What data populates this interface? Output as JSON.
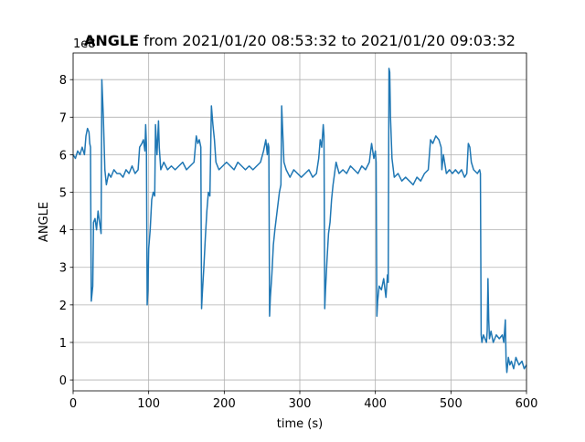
{
  "chart_data": {
    "type": "line",
    "title_bold": "ANGLE",
    "title": "from 2021/01/20 08:53:32 to 2021/01/20 09:03:32",
    "y_offset_label": "1e8",
    "x_label": "time (s)",
    "y_label": "ANGLE",
    "xlim": [
      0,
      600
    ],
    "xticks": [
      0,
      100,
      200,
      300,
      400,
      500,
      600
    ],
    "ylim": [
      -0.29,
      8.71
    ],
    "yticks": [
      0,
      1,
      2,
      3,
      4,
      5,
      6,
      7,
      8
    ],
    "grid": true,
    "series": [
      {
        "name": "ANGLE",
        "color": "#1f77b4",
        "x": [
          0,
          3,
          6,
          9,
          12,
          15,
          17,
          19,
          21,
          22,
          23,
          24,
          25,
          26,
          27,
          29,
          31,
          33,
          35,
          37,
          38,
          39,
          40,
          42,
          44,
          47,
          50,
          54,
          58,
          62,
          66,
          70,
          74,
          78,
          82,
          86,
          88,
          91,
          93,
          95,
          96,
          97,
          98,
          99,
          100,
          102,
          104,
          106,
          108,
          109,
          111,
          113,
          114,
          116,
          120,
          125,
          130,
          135,
          140,
          145,
          150,
          155,
          160,
          163,
          165,
          167,
          169,
          170,
          171,
          173,
          175,
          177,
          179,
          181,
          183,
          185,
          187,
          189,
          193,
          198,
          203,
          208,
          213,
          218,
          223,
          228,
          233,
          238,
          243,
          248,
          252,
          255,
          257,
          258,
          259,
          260,
          261,
          263,
          265,
          267,
          270,
          273,
          275,
          276,
          277,
          279,
          282,
          287,
          292,
          297,
          302,
          307,
          312,
          317,
          322,
          325,
          327,
          329,
          331,
          332,
          333,
          334,
          336,
          338,
          340,
          342,
          344,
          346,
          348,
          352,
          357,
          362,
          367,
          372,
          377,
          382,
          387,
          392,
          395,
          398,
          400,
          401,
          402,
          403,
          405,
          408,
          411,
          414,
          416,
          417,
          418,
          419,
          420,
          422,
          425,
          430,
          435,
          440,
          445,
          450,
          455,
          460,
          465,
          470,
          473,
          476,
          480,
          484,
          487,
          488,
          490,
          494,
          498,
          502,
          506,
          510,
          514,
          518,
          521,
          523,
          525,
          527,
          530,
          535,
          538,
          539,
          540,
          541,
          543,
          545,
          547,
          548,
          549,
          550,
          551,
          553,
          556,
          560,
          564,
          568,
          570,
          572,
          573,
          574,
          576,
          578,
          580,
          583,
          586,
          590,
          594,
          597,
          600
        ],
        "values": [
          6.0,
          5.9,
          6.1,
          6.0,
          6.2,
          6.0,
          6.5,
          6.7,
          6.6,
          6.3,
          6.2,
          2.1,
          2.3,
          2.5,
          4.2,
          4.3,
          4.0,
          4.5,
          4.2,
          3.9,
          8.0,
          7.5,
          7.0,
          5.6,
          5.2,
          5.5,
          5.4,
          5.6,
          5.5,
          5.5,
          5.4,
          5.6,
          5.5,
          5.7,
          5.5,
          5.6,
          6.2,
          6.3,
          6.4,
          6.1,
          6.8,
          6.3,
          2.0,
          2.4,
          3.5,
          4.0,
          4.8,
          5.0,
          4.9,
          6.8,
          6.0,
          6.9,
          6.2,
          5.6,
          5.8,
          5.6,
          5.7,
          5.6,
          5.7,
          5.8,
          5.6,
          5.7,
          5.8,
          6.5,
          6.3,
          6.4,
          6.2,
          1.9,
          2.3,
          3.0,
          3.8,
          4.5,
          5.0,
          4.9,
          7.3,
          6.8,
          6.4,
          5.8,
          5.6,
          5.7,
          5.8,
          5.7,
          5.6,
          5.8,
          5.7,
          5.6,
          5.7,
          5.6,
          5.7,
          5.8,
          6.1,
          6.4,
          6.0,
          6.3,
          6.2,
          1.7,
          2.2,
          2.8,
          3.6,
          4.0,
          4.5,
          5.0,
          5.2,
          7.3,
          6.8,
          5.8,
          5.6,
          5.4,
          5.6,
          5.5,
          5.4,
          5.5,
          5.6,
          5.4,
          5.5,
          5.9,
          6.4,
          6.2,
          6.8,
          6.5,
          1.9,
          2.4,
          3.2,
          3.9,
          4.2,
          4.8,
          5.2,
          5.5,
          5.8,
          5.5,
          5.6,
          5.5,
          5.7,
          5.6,
          5.5,
          5.7,
          5.6,
          5.8,
          6.3,
          5.9,
          6.1,
          5.8,
          1.7,
          2.1,
          2.5,
          2.4,
          2.7,
          2.2,
          2.8,
          2.6,
          8.3,
          8.2,
          7.0,
          5.9,
          5.4,
          5.5,
          5.3,
          5.4,
          5.3,
          5.2,
          5.4,
          5.3,
          5.5,
          5.6,
          6.4,
          6.3,
          6.5,
          6.4,
          6.2,
          5.6,
          6.0,
          5.5,
          5.6,
          5.5,
          5.6,
          5.5,
          5.6,
          5.4,
          5.5,
          6.3,
          6.2,
          5.8,
          5.6,
          5.5,
          5.6,
          5.5,
          1.2,
          1.0,
          1.2,
          1.1,
          1.0,
          1.3,
          2.7,
          1.6,
          1.1,
          1.3,
          1.0,
          1.2,
          1.1,
          1.2,
          1.0,
          1.6,
          0.5,
          0.2,
          0.6,
          0.4,
          0.5,
          0.3,
          0.6,
          0.4,
          0.5,
          0.3,
          0.4
        ]
      }
    ]
  }
}
